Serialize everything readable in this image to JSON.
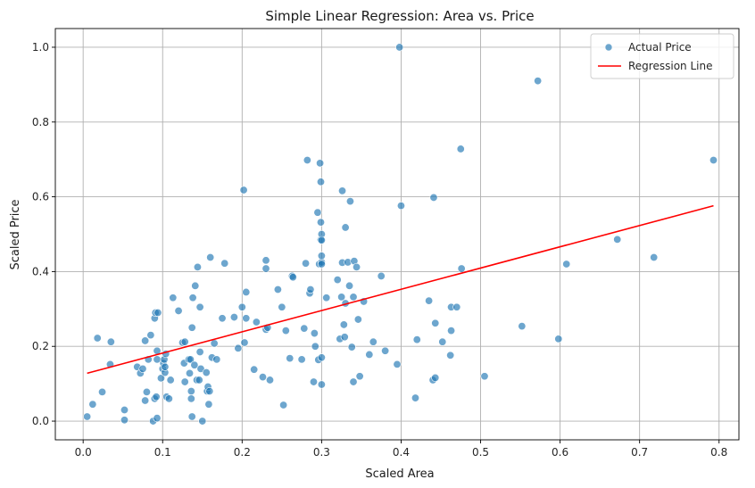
{
  "chart_data": {
    "type": "scatter",
    "title": "Simple Linear Regression: Area vs. Price",
    "xlabel": "Scaled Area",
    "ylabel": "Scaled Price",
    "xlim": [
      -0.035,
      0.825
    ],
    "ylim": [
      -0.05,
      1.05
    ],
    "xticks": [
      0.0,
      0.1,
      0.2,
      0.3,
      0.4,
      0.5,
      0.6,
      0.7,
      0.8
    ],
    "xtick_labels": [
      "0.0",
      "0.1",
      "0.2",
      "0.3",
      "0.4",
      "0.5",
      "0.6",
      "0.7",
      "0.8"
    ],
    "yticks": [
      0.0,
      0.2,
      0.4,
      0.6,
      0.8,
      1.0
    ],
    "ytick_labels": [
      "0.0",
      "0.2",
      "0.4",
      "0.6",
      "0.8",
      "1.0"
    ],
    "grid": true,
    "legend_position": "top-right",
    "series": [
      {
        "name": "Actual Price",
        "type": "scatter",
        "color": "#1f77b4",
        "points": [
          [
            0.005,
            0.012
          ],
          [
            0.012,
            0.045
          ],
          [
            0.018,
            0.222
          ],
          [
            0.024,
            0.078
          ],
          [
            0.034,
            0.152
          ],
          [
            0.035,
            0.212
          ],
          [
            0.052,
            0.003
          ],
          [
            0.052,
            0.03
          ],
          [
            0.068,
            0.145
          ],
          [
            0.072,
            0.128
          ],
          [
            0.075,
            0.14
          ],
          [
            0.078,
            0.055
          ],
          [
            0.078,
            0.215
          ],
          [
            0.08,
            0.078
          ],
          [
            0.082,
            0.165
          ],
          [
            0.085,
            0.23
          ],
          [
            0.088,
            0.0
          ],
          [
            0.09,
            0.275
          ],
          [
            0.09,
            0.06
          ],
          [
            0.091,
            0.29
          ],
          [
            0.092,
            0.065
          ],
          [
            0.093,
            0.008
          ],
          [
            0.093,
            0.165
          ],
          [
            0.093,
            0.188
          ],
          [
            0.094,
            0.29
          ],
          [
            0.098,
            0.115
          ],
          [
            0.1,
            0.14
          ],
          [
            0.101,
            0.155
          ],
          [
            0.102,
            0.165
          ],
          [
            0.103,
            0.13
          ],
          [
            0.103,
            0.145
          ],
          [
            0.104,
            0.18
          ],
          [
            0.105,
            0.065
          ],
          [
            0.108,
            0.06
          ],
          [
            0.11,
            0.11
          ],
          [
            0.113,
            0.33
          ],
          [
            0.12,
            0.295
          ],
          [
            0.125,
            0.21
          ],
          [
            0.127,
            0.155
          ],
          [
            0.128,
            0.105
          ],
          [
            0.128,
            0.212
          ],
          [
            0.133,
            0.165
          ],
          [
            0.134,
            0.128
          ],
          [
            0.135,
            0.165
          ],
          [
            0.136,
            0.08
          ],
          [
            0.136,
            0.06
          ],
          [
            0.137,
            0.012
          ],
          [
            0.137,
            0.25
          ],
          [
            0.138,
            0.33
          ],
          [
            0.14,
            0.15
          ],
          [
            0.141,
            0.362
          ],
          [
            0.143,
            0.11
          ],
          [
            0.144,
            0.412
          ],
          [
            0.146,
            0.11
          ],
          [
            0.147,
            0.305
          ],
          [
            0.147,
            0.185
          ],
          [
            0.148,
            0.14
          ],
          [
            0.15,
            0.0
          ],
          [
            0.155,
            0.13
          ],
          [
            0.156,
            0.08
          ],
          [
            0.157,
            0.092
          ],
          [
            0.158,
            0.045
          ],
          [
            0.159,
            0.08
          ],
          [
            0.16,
            0.438
          ],
          [
            0.162,
            0.17
          ],
          [
            0.165,
            0.208
          ],
          [
            0.168,
            0.165
          ],
          [
            0.175,
            0.275
          ],
          [
            0.178,
            0.422
          ],
          [
            0.19,
            0.278
          ],
          [
            0.195,
            0.195
          ],
          [
            0.2,
            0.305
          ],
          [
            0.202,
            0.618
          ],
          [
            0.203,
            0.21
          ],
          [
            0.205,
            0.345
          ],
          [
            0.205,
            0.275
          ],
          [
            0.215,
            0.138
          ],
          [
            0.218,
            0.265
          ],
          [
            0.226,
            0.118
          ],
          [
            0.23,
            0.43
          ],
          [
            0.23,
            0.408
          ],
          [
            0.23,
            0.245
          ],
          [
            0.232,
            0.25
          ],
          [
            0.235,
            0.11
          ],
          [
            0.245,
            0.352
          ],
          [
            0.25,
            0.305
          ],
          [
            0.252,
            0.043
          ],
          [
            0.255,
            0.242
          ],
          [
            0.26,
            0.168
          ],
          [
            0.263,
            0.388
          ],
          [
            0.264,
            0.385
          ],
          [
            0.275,
            0.165
          ],
          [
            0.278,
            0.248
          ],
          [
            0.28,
            0.422
          ],
          [
            0.282,
            0.698
          ],
          [
            0.285,
            0.342
          ],
          [
            0.286,
            0.352
          ],
          [
            0.29,
            0.105
          ],
          [
            0.291,
            0.235
          ],
          [
            0.292,
            0.2
          ],
          [
            0.295,
            0.558
          ],
          [
            0.296,
            0.164
          ],
          [
            0.297,
            0.42
          ],
          [
            0.298,
            0.69
          ],
          [
            0.299,
            0.64
          ],
          [
            0.299,
            0.485
          ],
          [
            0.299,
            0.532
          ],
          [
            0.3,
            0.5
          ],
          [
            0.3,
            0.484
          ],
          [
            0.3,
            0.425
          ],
          [
            0.3,
            0.42
          ],
          [
            0.3,
            0.442
          ],
          [
            0.3,
            0.17
          ],
          [
            0.3,
            0.098
          ],
          [
            0.306,
            0.33
          ],
          [
            0.32,
            0.378
          ],
          [
            0.323,
            0.22
          ],
          [
            0.325,
            0.332
          ],
          [
            0.326,
            0.424
          ],
          [
            0.326,
            0.616
          ],
          [
            0.328,
            0.258
          ],
          [
            0.329,
            0.225
          ],
          [
            0.33,
            0.315
          ],
          [
            0.33,
            0.518
          ],
          [
            0.333,
            0.425
          ],
          [
            0.335,
            0.362
          ],
          [
            0.336,
            0.588
          ],
          [
            0.338,
            0.198
          ],
          [
            0.34,
            0.332
          ],
          [
            0.34,
            0.105
          ],
          [
            0.341,
            0.428
          ],
          [
            0.344,
            0.412
          ],
          [
            0.346,
            0.272
          ],
          [
            0.348,
            0.12
          ],
          [
            0.353,
            0.32
          ],
          [
            0.36,
            0.178
          ],
          [
            0.365,
            0.212
          ],
          [
            0.375,
            0.388
          ],
          [
            0.38,
            0.188
          ],
          [
            0.395,
            0.152
          ],
          [
            0.398,
            1.0
          ],
          [
            0.4,
            0.576
          ],
          [
            0.418,
            0.062
          ],
          [
            0.42,
            0.218
          ],
          [
            0.435,
            0.322
          ],
          [
            0.44,
            0.11
          ],
          [
            0.441,
            0.598
          ],
          [
            0.443,
            0.116
          ],
          [
            0.443,
            0.262
          ],
          [
            0.452,
            0.212
          ],
          [
            0.462,
            0.176
          ],
          [
            0.463,
            0.242
          ],
          [
            0.463,
            0.305
          ],
          [
            0.47,
            0.305
          ],
          [
            0.475,
            0.728
          ],
          [
            0.476,
            0.408
          ],
          [
            0.505,
            0.12
          ],
          [
            0.552,
            0.254
          ],
          [
            0.572,
            0.91
          ],
          [
            0.598,
            0.22
          ],
          [
            0.608,
            0.42
          ],
          [
            0.672,
            0.486
          ],
          [
            0.718,
            0.438
          ],
          [
            0.793,
            0.698
          ]
        ]
      },
      {
        "name": "Regression Line",
        "type": "line",
        "color": "#ff0000",
        "points": [
          [
            0.005,
            0.128
          ],
          [
            0.793,
            0.576
          ]
        ]
      }
    ]
  }
}
